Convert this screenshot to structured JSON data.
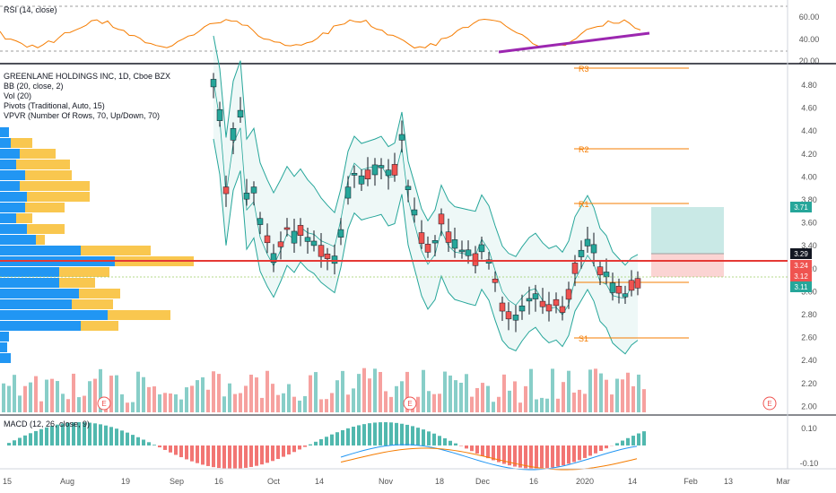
{
  "rsi": {
    "label": "RSI (14, close)",
    "ticks": [
      "60.00",
      "40.00",
      "20.00"
    ]
  },
  "main": {
    "legend": [
      "GREENLANE HOLDINGS INC, 1D, Cboe BZX",
      "BB (20, close, 2)",
      "Vol (20)",
      "Pivots (Traditional, Auto, 15)",
      "VPVR (Number Of Rows, 70, Up/Down, 70)"
    ],
    "price_ticks": [
      "4.80",
      "4.60",
      "4.40",
      "4.20",
      "4.00",
      "3.80",
      "3.60",
      "3.40",
      "3.20",
      "3.00",
      "2.80",
      "2.60",
      "2.40",
      "2.20",
      "2.00"
    ],
    "pivot_labels": [
      "R3",
      "R2",
      "R1",
      "S1"
    ],
    "price_tags": [
      {
        "text": "3.71",
        "bg": "#26a69a"
      },
      {
        "text": "3.29",
        "bg": "#131722"
      },
      {
        "text": "3.24",
        "bg": "#ef5350"
      },
      {
        "text": "3.12",
        "bg": "#ef5350"
      },
      {
        "text": "3.11",
        "bg": "#26a69a"
      }
    ],
    "earnings_marker": "E"
  },
  "macd": {
    "label": "MACD (12, 26, close, 9)",
    "ticks": [
      "0.10",
      "-0.10"
    ]
  },
  "time_axis": {
    "labels": [
      "15",
      "Aug",
      "19",
      "Sep",
      "16",
      "Oct",
      "14",
      "Nov",
      "18",
      "Dec",
      "16",
      "2020",
      "14",
      "Feb",
      "13",
      "Mar"
    ]
  },
  "colors": {
    "up": "#26a69a",
    "down": "#ef5350",
    "bb": "#26a69a",
    "pivot": "#f57c00",
    "hline": "#e53935",
    "trendline": "#9c27b0",
    "rsi_line": "#f57c00",
    "vpvr_up": "#2196f3",
    "vpvr_down": "#f9c74f",
    "macd_line": "#2196f3",
    "signal_line": "#f57c00"
  }
}
